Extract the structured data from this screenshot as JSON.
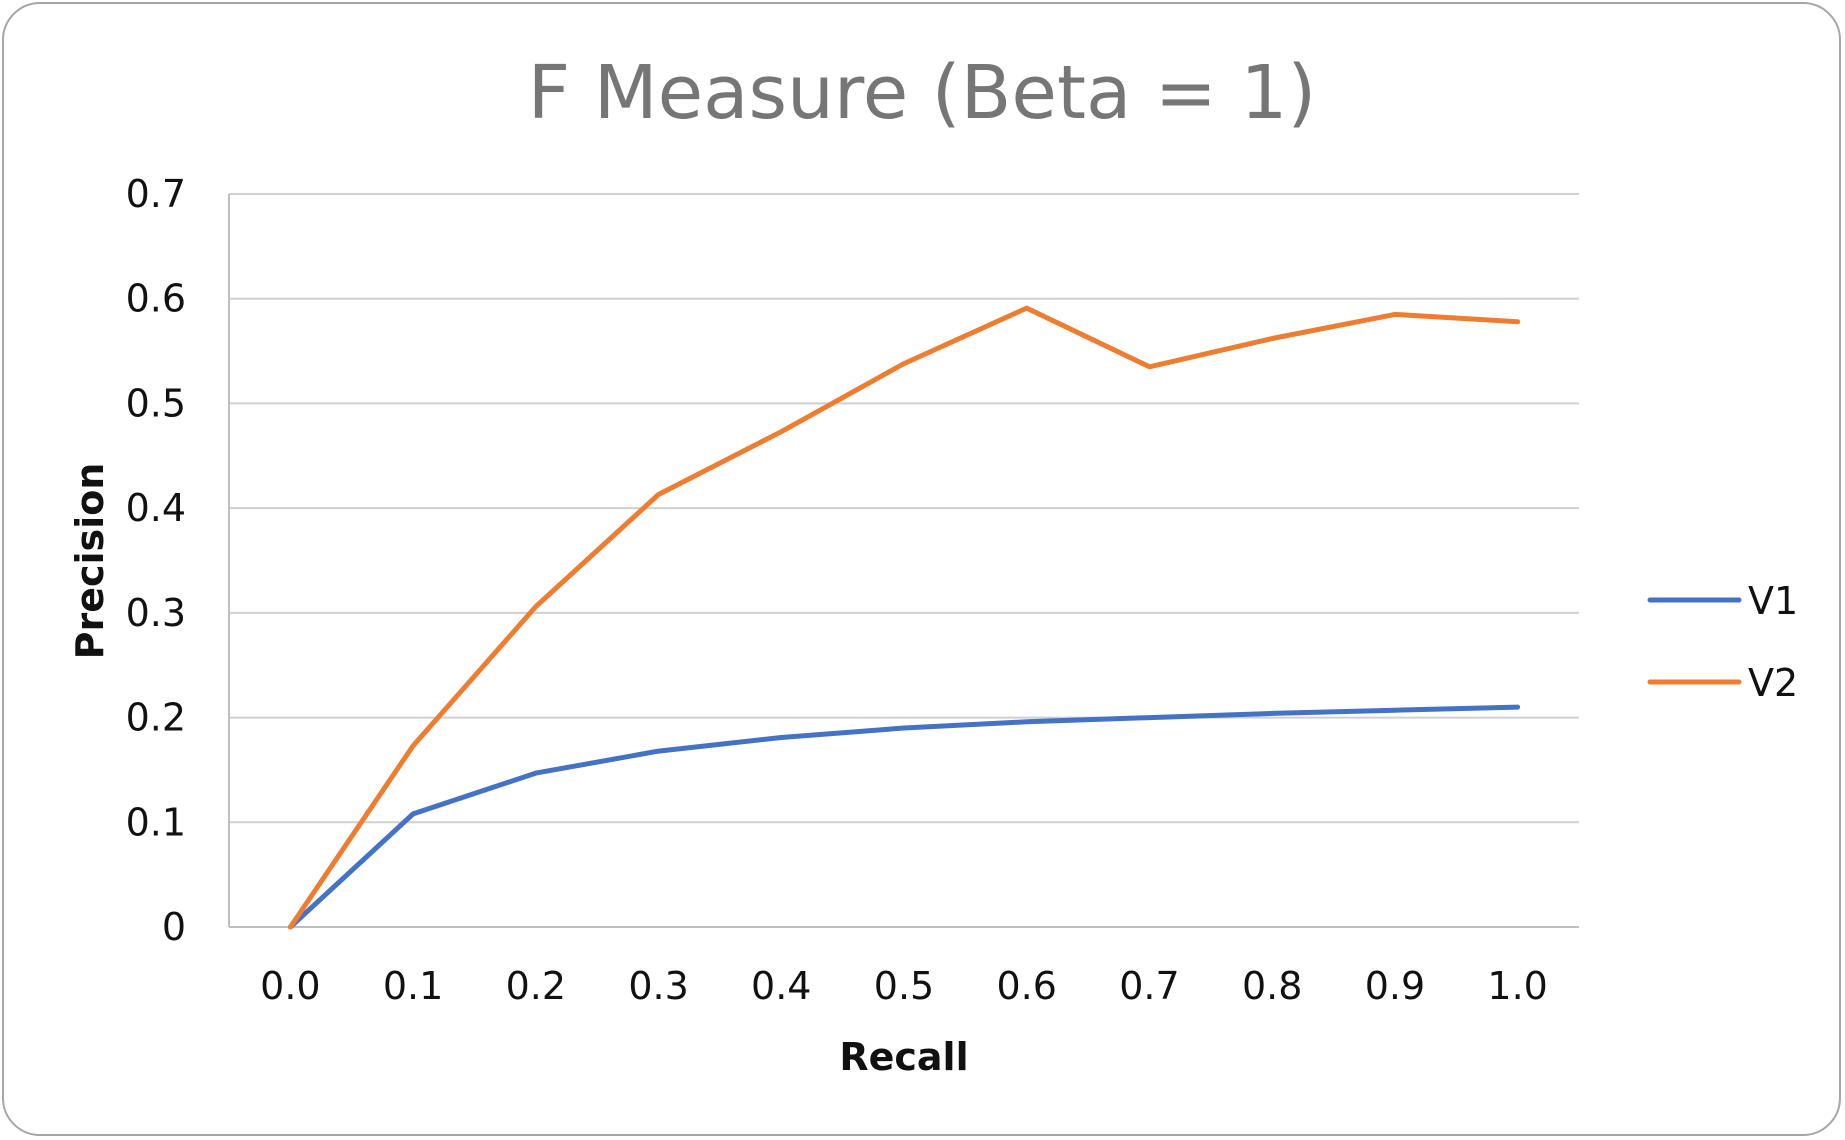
{
  "chart_data": {
    "type": "line",
    "title": "F Measure (Beta = 1)",
    "xlabel": "Recall",
    "ylabel": "Precision",
    "categories": [
      "0.0",
      "0.1",
      "0.2",
      "0.3",
      "0.4",
      "0.5",
      "0.6",
      "0.7",
      "0.8",
      "0.9",
      "1.0"
    ],
    "yticks": [
      "0",
      "0.1",
      "0.2",
      "0.3",
      "0.4",
      "0.5",
      "0.6",
      "0.7"
    ],
    "ylim": [
      0,
      0.7
    ],
    "grid": true,
    "legend_position": "right",
    "series": [
      {
        "name": "V1",
        "color": "#4472c4",
        "values": [
          0.0,
          0.108,
          0.147,
          0.168,
          0.181,
          0.19,
          0.196,
          0.2,
          0.204,
          0.207,
          0.21
        ]
      },
      {
        "name": "V2",
        "color": "#ed7d31",
        "values": [
          0.0,
          0.173,
          0.306,
          0.413,
          0.473,
          0.538,
          0.591,
          0.535,
          0.562,
          0.585,
          0.578
        ]
      }
    ]
  }
}
